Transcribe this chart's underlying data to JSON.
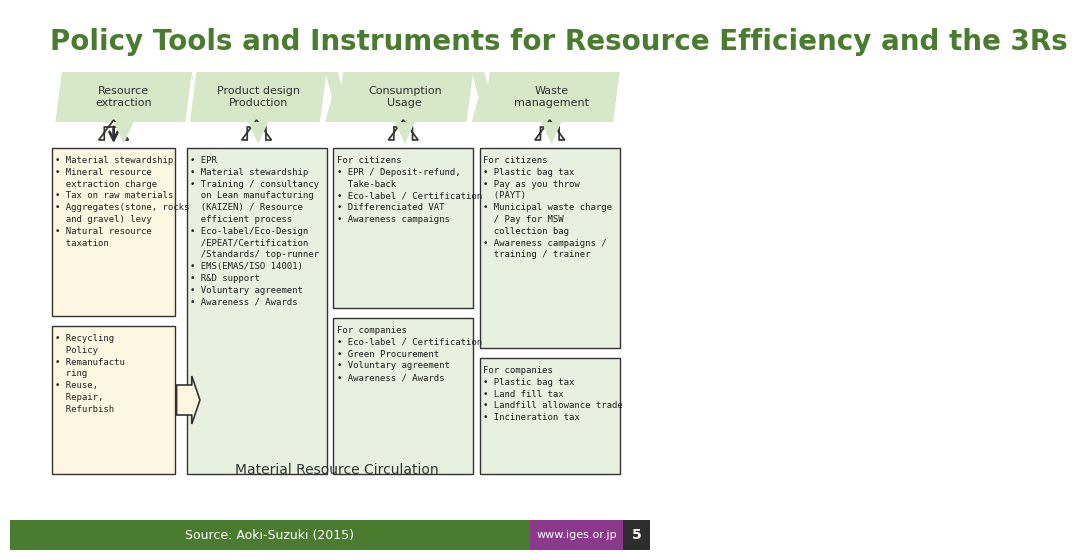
{
  "title": "Policy Tools and Instruments for Resource Efficiency and the 3Rs",
  "title_color": "#4a7c2f",
  "title_fontsize": 20,
  "bg_color": "#ffffff",
  "header_bg": "#d6e8c8",
  "header_text_color": "#333333",
  "headers": [
    "Resource\nextraction",
    "Product design\nProduction",
    "Consumption\nUsage",
    "Waste\nmanagement"
  ],
  "box1_color": "#fdf6e0",
  "box1_border": "#333333",
  "box2_color": "#e8f0df",
  "box2_border": "#333333",
  "arrow_color": "#333333",
  "col1_upper_text": "• Material stewardship\n• Mineral resource\n  extraction charge\n• Tax on raw materials\n• Aggregates(stone, rocks\n  and gravel) levy\n• Natural resource\n  taxation",
  "col1_lower_text": "• Recycling\n  Policy\n• Remanufactu\n  ring\n• Reuse,\n  Repair,\n  Refurbish",
  "col2_text": "• EPR\n• Material stewardship\n• Training / consultancy\n  on Lean manufacturing\n  (KAIZEN) / Resource\n  efficient process\n• Eco-label/Eco-Design\n  /EPEAT/Certification\n  /Standards/ top-runner\n• EMS(EMAS/ISO 14001)\n• R&D support\n• Voluntary agreement\n• Awareness / Awards",
  "col3_upper_text": "For citizens\n• EPR / Deposit-refund,\n  Take-back\n• Eco-label / Certification\n• Differenciated VAT\n• Awareness campaigns",
  "col3_lower_text": "For companies\n• Eco-label / Certification\n• Green Procurement\n• Voluntary agreement\n• Awareness / Awards",
  "col4_upper_text": "For citizens\n• Plastic bag tax\n• Pay as you throw\n  (PAYT)\n• Municipal waste charge\n  / Pay for MSW\n  collection bag\n• Awareness campaigns /\n  training / trainer",
  "col4_lower_text": "For companies\n• Plastic bag tax\n• Land fill tax\n• Landfill allowance trade\n• Incineration tax",
  "footer_text": "Source: Aoki-Suzuki (2015)",
  "footer_bg": "#4a7c2f",
  "footer_text_color": "#ffffff",
  "url_text": "www.iges.or.jp",
  "url_bg": "#8b3a8b",
  "page_num": "5",
  "page_bg": "#2d2d2d",
  "mrc_text": "Material Resource Circulation",
  "mrc_color": "#333333"
}
